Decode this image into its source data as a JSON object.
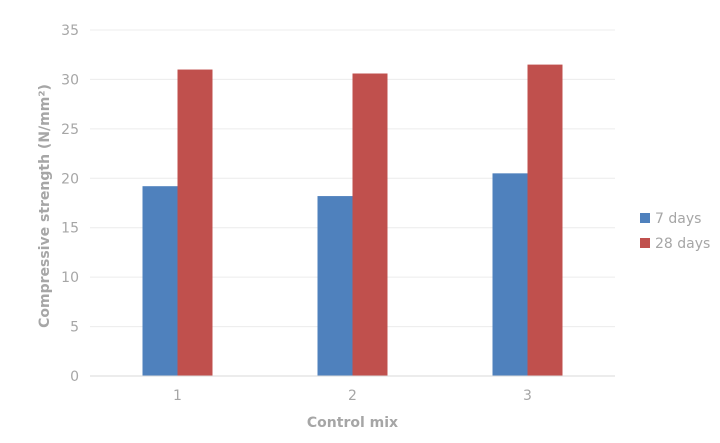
{
  "chart_data": {
    "type": "bar",
    "title": "",
    "xlabel": "Control mix",
    "ylabel": "Compressive strength (N/mm²)",
    "categories": [
      "1",
      "2",
      "3"
    ],
    "series": [
      {
        "name": "7 days",
        "color": "#4f81bd",
        "values": [
          19.2,
          18.2,
          20.5
        ]
      },
      {
        "name": "28 days",
        "color": "#c0504d",
        "values": [
          31.0,
          30.6,
          31.5
        ]
      }
    ],
    "ylim": [
      0,
      35
    ],
    "yticks": [
      0,
      5,
      10,
      15,
      20,
      25,
      30,
      35
    ],
    "grid": true,
    "legend_position": "right"
  }
}
